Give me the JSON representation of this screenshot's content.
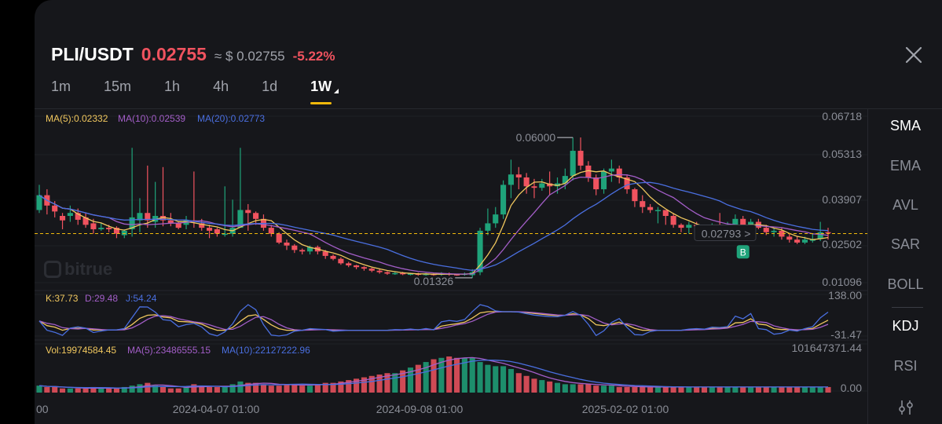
{
  "header": {
    "pair": "PLI/USDT",
    "price": "0.02755",
    "approx": "≈ $ 0.02755",
    "change": "-5.22%"
  },
  "tabs": [
    "1m",
    "15m",
    "1h",
    "4h",
    "1d",
    "1W"
  ],
  "active_tab": "1W",
  "indicators": [
    "SMA",
    "EMA",
    "AVL",
    "SAR",
    "BOLL",
    "KDJ",
    "RSI"
  ],
  "active_main_indicator": "SMA",
  "active_sub_indicator": "KDJ",
  "watermark": "bitrue",
  "colors": {
    "up": "#1fa37a",
    "down": "#f0535f",
    "ma5": "#f0c75e",
    "ma10": "#a35ec8",
    "ma20": "#4a6fe0",
    "accent": "#f0b90b"
  },
  "main": {
    "legend": {
      "ma5": "MA(5):0.02332",
      "ma10": "MA(10):0.02539",
      "ma20": "MA(20):0.02773"
    },
    "axis_labels": [
      "0.06718",
      "0.05313",
      "0.03907",
      "0.02502",
      "0.01096"
    ],
    "last_price_tag": "0.02793",
    "high_label": "0.06000",
    "low_label": "0.01326",
    "buy_marker": "B"
  },
  "kdj": {
    "legend": {
      "k": "K:37.73",
      "d": "D:29.48",
      "j": "J:54.24"
    },
    "axis_labels": [
      "138.00",
      "-31.47"
    ]
  },
  "volume": {
    "legend": {
      "vol": "Vol:19974584.45",
      "ma5": "MA(5):23486555.15",
      "ma10": "MA(10):22127222.96"
    },
    "axis_labels": [
      "101647371.44",
      "0.00"
    ]
  },
  "x_labels": [
    "00",
    "2024-04-07 01:00",
    "2024-09-08 01:00",
    "2025-02-02 01:00"
  ],
  "chart_data": {
    "type": "candlestick",
    "y_range": [
      0.01096,
      0.06718
    ],
    "candles": [
      [
        0.0355,
        0.0405,
        0.044,
        0.0345
      ],
      [
        0.0405,
        0.037,
        0.0425,
        0.034
      ],
      [
        0.037,
        0.035,
        0.0385,
        0.033
      ],
      [
        0.0335,
        0.032,
        0.0345,
        0.029
      ],
      [
        0.0335,
        0.0345,
        0.037,
        0.0315
      ],
      [
        0.0345,
        0.0322,
        0.036,
        0.0305
      ],
      [
        0.033,
        0.0305,
        0.0345,
        0.0295
      ],
      [
        0.031,
        0.029,
        0.0325,
        0.0275
      ],
      [
        0.029,
        0.0295,
        0.031,
        0.0285
      ],
      [
        0.0295,
        0.029,
        0.0305,
        0.028
      ],
      [
        0.0295,
        0.0275,
        0.03,
        0.026
      ],
      [
        0.027,
        0.0285,
        0.029,
        0.026
      ],
      [
        0.029,
        0.033,
        0.0565,
        0.0265
      ],
      [
        0.032,
        0.0345,
        0.0395,
        0.028
      ],
      [
        0.0345,
        0.032,
        0.0505,
        0.0295
      ],
      [
        0.0315,
        0.0335,
        0.045,
        0.0295
      ],
      [
        0.0335,
        0.032,
        0.05,
        0.03
      ],
      [
        0.032,
        0.031,
        0.0345,
        0.03
      ],
      [
        0.031,
        0.0295,
        0.0315,
        0.029
      ],
      [
        0.0305,
        0.032,
        0.0335,
        0.029
      ],
      [
        0.032,
        0.0315,
        0.0485,
        0.0295
      ],
      [
        0.031,
        0.0295,
        0.0325,
        0.0285
      ],
      [
        0.0295,
        0.0285,
        0.0305,
        0.026
      ],
      [
        0.029,
        0.0275,
        0.0295,
        0.0265
      ],
      [
        0.0275,
        0.0275,
        0.0435,
        0.0265
      ],
      [
        0.0275,
        0.0295,
        0.039,
        0.0265
      ],
      [
        0.0295,
        0.0355,
        0.0565,
        0.0295
      ],
      [
        0.0355,
        0.0345,
        0.0375,
        0.0285
      ],
      [
        0.0345,
        0.0325,
        0.035,
        0.0305
      ],
      [
        0.0325,
        0.0295,
        0.034,
        0.0285
      ],
      [
        0.0295,
        0.0275,
        0.0305,
        0.0265
      ],
      [
        0.0275,
        0.0245,
        0.028,
        0.024
      ],
      [
        0.0245,
        0.0235,
        0.0255,
        0.022
      ],
      [
        0.0235,
        0.022,
        0.024,
        0.021
      ],
      [
        0.022,
        0.0215,
        0.0225,
        0.0205
      ],
      [
        0.0215,
        0.023,
        0.0235,
        0.0205
      ],
      [
        0.023,
        0.0215,
        0.0235,
        0.0205
      ],
      [
        0.0215,
        0.02,
        0.022,
        0.019
      ],
      [
        0.02,
        0.019,
        0.0205,
        0.0185
      ],
      [
        0.019,
        0.0175,
        0.0195,
        0.017
      ],
      [
        0.0175,
        0.0168,
        0.018,
        0.0162
      ],
      [
        0.0168,
        0.0162,
        0.017,
        0.0155
      ],
      [
        0.0162,
        0.0157,
        0.0165,
        0.015
      ],
      [
        0.0157,
        0.015,
        0.016,
        0.0145
      ],
      [
        0.015,
        0.0145,
        0.0155,
        0.014
      ],
      [
        0.0145,
        0.014,
        0.0148,
        0.0136
      ],
      [
        0.014,
        0.0142,
        0.0146,
        0.0136
      ],
      [
        0.0142,
        0.0138,
        0.0146,
        0.0135
      ],
      [
        0.0138,
        0.014,
        0.0143,
        0.0134
      ],
      [
        0.014,
        0.0137,
        0.0143,
        0.0133
      ],
      [
        0.0137,
        0.0139,
        0.0142,
        0.0133
      ],
      [
        0.0139,
        0.0136,
        0.0141,
        0.0133
      ],
      [
        0.0136,
        0.0141,
        0.0145,
        0.0133
      ],
      [
        0.0141,
        0.0138,
        0.0144,
        0.0133
      ],
      [
        0.0138,
        0.0137,
        0.014,
        0.0133
      ],
      [
        0.0137,
        0.014,
        0.0144,
        0.0133
      ],
      [
        0.0135,
        0.0145,
        0.0155,
        0.0126
      ],
      [
        0.0145,
        0.0285,
        0.0295,
        0.0135
      ],
      [
        0.0285,
        0.031,
        0.036,
        0.027
      ],
      [
        0.031,
        0.034,
        0.0365,
        0.0295
      ],
      [
        0.034,
        0.044,
        0.0455,
        0.0325
      ],
      [
        0.044,
        0.0475,
        0.0525,
        0.0395
      ],
      [
        0.0475,
        0.0465,
        0.05,
        0.0425
      ],
      [
        0.0465,
        0.0435,
        0.048,
        0.041
      ],
      [
        0.0435,
        0.043,
        0.046,
        0.0395
      ],
      [
        0.043,
        0.0445,
        0.046,
        0.042
      ],
      [
        0.0445,
        0.0435,
        0.0485,
        0.0405
      ],
      [
        0.0435,
        0.0445,
        0.0465,
        0.041
      ],
      [
        0.0445,
        0.047,
        0.0495,
        0.0425
      ],
      [
        0.047,
        0.0555,
        0.06,
        0.0455
      ],
      [
        0.0555,
        0.0505,
        0.06,
        0.049
      ],
      [
        0.0505,
        0.0465,
        0.052,
        0.045
      ],
      [
        0.0465,
        0.0425,
        0.0475,
        0.0405
      ],
      [
        0.0425,
        0.0485,
        0.0495,
        0.041
      ],
      [
        0.0485,
        0.0495,
        0.0525,
        0.045
      ],
      [
        0.0495,
        0.0465,
        0.0505,
        0.0445
      ],
      [
        0.0465,
        0.0425,
        0.0475,
        0.041
      ],
      [
        0.0425,
        0.0385,
        0.043,
        0.0365
      ],
      [
        0.0385,
        0.0365,
        0.0405,
        0.0345
      ],
      [
        0.0365,
        0.0355,
        0.0375,
        0.0345
      ],
      [
        0.0355,
        0.0355,
        0.0365,
        0.031
      ],
      [
        0.0355,
        0.0335,
        0.0345,
        0.0305
      ],
      [
        0.0335,
        0.0305,
        0.0345,
        0.0295
      ],
      [
        0.0305,
        0.0295,
        0.031,
        0.028
      ],
      [
        0.0295,
        0.0305,
        0.0315,
        0.0275
      ],
      [
        0.0305,
        0.03,
        0.0315,
        0.028
      ],
      [
        0.03,
        0.029,
        0.0305,
        0.0275
      ],
      [
        0.029,
        0.0305,
        0.031,
        0.0285
      ],
      [
        0.0305,
        0.0295,
        0.0345,
        0.029
      ],
      [
        0.0295,
        0.0295,
        0.0315,
        0.0275
      ],
      [
        0.0295,
        0.0325,
        0.034,
        0.0285
      ],
      [
        0.0325,
        0.0295,
        0.0335,
        0.029
      ],
      [
        0.0295,
        0.0315,
        0.0325,
        0.029
      ],
      [
        0.0315,
        0.0295,
        0.0325,
        0.029
      ],
      [
        0.0295,
        0.028,
        0.0305,
        0.027
      ],
      [
        0.028,
        0.0285,
        0.0295,
        0.0265
      ],
      [
        0.0285,
        0.0265,
        0.0295,
        0.0255
      ],
      [
        0.0265,
        0.0255,
        0.0275,
        0.0245
      ],
      [
        0.0255,
        0.0245,
        0.0265,
        0.024
      ],
      [
        0.0245,
        0.0255,
        0.0265,
        0.024
      ],
      [
        0.0255,
        0.0255,
        0.0275,
        0.0245
      ],
      [
        0.0258,
        0.028,
        0.0315,
        0.025
      ],
      [
        0.028,
        0.0276,
        0.0295,
        0.0255
      ]
    ],
    "volumes": [
      2.5,
      2.0,
      2.0,
      1.5,
      1.5,
      1.5,
      1.5,
      2.0,
      1.5,
      1.5,
      1.5,
      2.0,
      2.5,
      3.0,
      3.5,
      2.5,
      2.0,
      1.5,
      1.5,
      2.0,
      3.0,
      2.5,
      2.0,
      2.0,
      2.0,
      3.0,
      4.0,
      3.5,
      3.5,
      3.0,
      2.5,
      2.5,
      3.0,
      3.0,
      2.5,
      2.5,
      3.0,
      3.5,
      3.5,
      4.0,
      4.5,
      5.0,
      5.5,
      6.0,
      6.5,
      7.0,
      7.0,
      8.0,
      9.0,
      10.0,
      11.0,
      12.0,
      12.5,
      13.0,
      12.5,
      12.5,
      12.5,
      11.0,
      10.0,
      9.5,
      9.5,
      8.5,
      7.0,
      6.0,
      5.0,
      4.5,
      4.0,
      3.5,
      3.0,
      3.0,
      3.0,
      3.0,
      2.5,
      2.5,
      2.5,
      2.0,
      2.0,
      2.0,
      2.0,
      2.0,
      2.0,
      2.0,
      2.0,
      2.0,
      2.0,
      2.0,
      2.0,
      2.0,
      2.0,
      2.0,
      2.0,
      2.0,
      2.0,
      2.0,
      2.0,
      2.0,
      2.0,
      2.0,
      2.0,
      2.0,
      2.0,
      2.0,
      2.0
    ],
    "volume_unit": "millions (scaled to 0-101647371.44 axis, approximate)"
  }
}
